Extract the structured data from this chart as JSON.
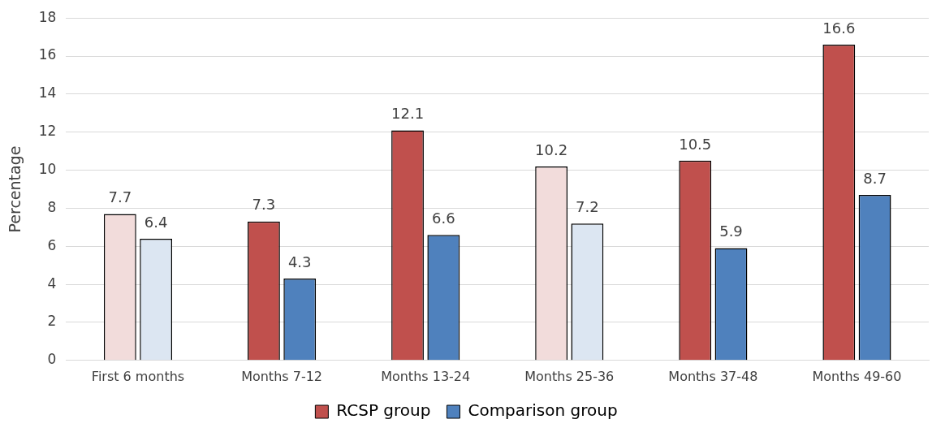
{
  "chart_data": {
    "type": "bar",
    "ylabel": "Percentage",
    "categories": [
      "First 6 months",
      "Months 7-12",
      "Months 13-24",
      "Months 25-36",
      "Months 37-48",
      "Months 49-60"
    ],
    "series": [
      {
        "name": "RCSP group",
        "color": "#c0504d",
        "colors": [
          "#f2dcdb",
          "#c0504d",
          "#c0504d",
          "#f2dcdb",
          "#c0504d",
          "#c0504d"
        ],
        "values": [
          7.7,
          7.3,
          12.1,
          10.2,
          10.5,
          16.6
        ]
      },
      {
        "name": "Comparison group",
        "color": "#4f81bd",
        "colors": [
          "#dce6f2",
          "#4f81bd",
          "#4f81bd",
          "#dce6f2",
          "#4f81bd",
          "#4f81bd"
        ],
        "values": [
          6.4,
          4.3,
          6.6,
          7.2,
          5.9,
          8.7
        ]
      }
    ],
    "ylim": [
      0,
      18
    ],
    "yticks": [
      0,
      2,
      4,
      6,
      8,
      10,
      12,
      14,
      16,
      18
    ],
    "grid": "y",
    "legend": "bottom",
    "data_labels": true
  }
}
